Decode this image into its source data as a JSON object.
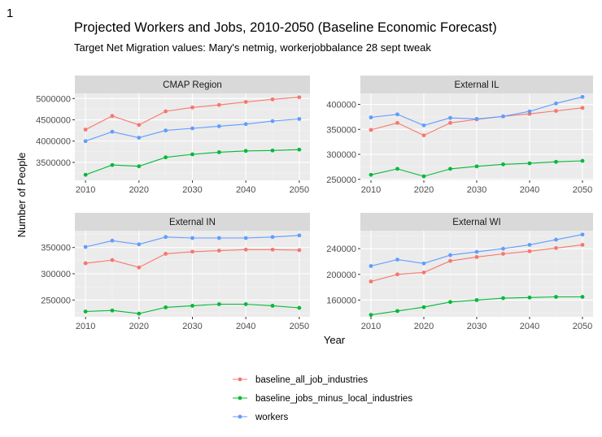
{
  "page_number": "1",
  "title": "Projected Workers and Jobs, 2010-2050 (Baseline Economic Forecast)",
  "subtitle": "Target Net Migration values:  Mary's netmig, workerjobbalance 28 sept tweak",
  "colors": {
    "baseline_all_job_industries": "#F8766D",
    "baseline_jobs_minus_local_industries": "#00BA38",
    "workers": "#619CFF",
    "panel_bg": "#EBEBEB",
    "strip_bg": "#D9D9D9",
    "grid_major": "#FFFFFF",
    "grid_minor": "#F4F4F4"
  },
  "chart_data": {
    "type": "line",
    "facets": true,
    "x": [
      2010,
      2015,
      2020,
      2025,
      2030,
      2035,
      2040,
      2045,
      2050
    ],
    "xlabel": "Year",
    "ylabel": "Number of People",
    "xticks": [
      2010,
      2020,
      2030,
      2040,
      2050
    ],
    "legend_position": "bottom",
    "legend": [
      "baseline_all_job_industries",
      "baseline_jobs_minus_local_industries",
      "workers"
    ],
    "panels": [
      {
        "title": "CMAP Region",
        "ylim": [
          3080000,
          5120000
        ],
        "yticks": [
          3500000,
          4000000,
          4500000,
          5000000
        ],
        "yticklabels": [
          "3500000",
          "4000000",
          "4500000",
          "5000000"
        ],
        "series": [
          {
            "name": "baseline_all_job_industries",
            "values": [
              4270000,
              4590000,
              4380000,
              4700000,
              4790000,
              4850000,
              4920000,
              4980000,
              5030000
            ]
          },
          {
            "name": "baseline_jobs_minus_local_industries",
            "values": [
              3210000,
              3440000,
              3410000,
              3620000,
              3690000,
              3740000,
              3770000,
              3780000,
              3800000
            ]
          },
          {
            "name": "workers",
            "values": [
              4000000,
              4220000,
              4080000,
              4250000,
              4300000,
              4350000,
              4400000,
              4470000,
              4520000
            ]
          }
        ]
      },
      {
        "title": "External IL",
        "ylim": [
          248000,
          422000
        ],
        "yticks": [
          250000,
          300000,
          350000,
          400000
        ],
        "yticklabels": [
          "250000",
          "300000",
          "350000",
          "400000"
        ],
        "series": [
          {
            "name": "baseline_all_job_industries",
            "values": [
              349000,
              363000,
              338000,
              363000,
              370000,
              376000,
              381000,
              387000,
              393000
            ]
          },
          {
            "name": "baseline_jobs_minus_local_industries",
            "values": [
              259000,
              271000,
              256000,
              271000,
              276000,
              280000,
              282000,
              285000,
              287000
            ]
          },
          {
            "name": "workers",
            "values": [
              374000,
              380000,
              358000,
              373000,
              371000,
              376000,
              386000,
              402000,
              415000
            ]
          }
        ]
      },
      {
        "title": "External IN",
        "ylim": [
          218000,
          382000
        ],
        "yticks": [
          250000,
          300000,
          350000
        ],
        "yticklabels": [
          "250000",
          "300000",
          "350000"
        ],
        "series": [
          {
            "name": "baseline_all_job_industries",
            "values": [
              320000,
              326000,
              312000,
              338000,
              342000,
              344000,
              346000,
              346000,
              345000
            ]
          },
          {
            "name": "baseline_jobs_minus_local_industries",
            "values": [
              228000,
              230000,
              224000,
              236000,
              239000,
              242000,
              242000,
              239000,
              235000
            ]
          },
          {
            "name": "workers",
            "values": [
              351000,
              363000,
              356000,
              370000,
              368000,
              368000,
              368000,
              370000,
              373000
            ]
          }
        ]
      },
      {
        "title": "External WI",
        "ylim": [
          134000,
          268000
        ],
        "yticks": [
          160000,
          200000,
          240000
        ],
        "yticklabels": [
          "160000",
          "200000",
          "240000"
        ],
        "series": [
          {
            "name": "baseline_all_job_industries",
            "values": [
              189000,
              200000,
              203000,
              221000,
              227000,
              232000,
              236000,
              241000,
              246000
            ]
          },
          {
            "name": "baseline_jobs_minus_local_industries",
            "values": [
              137000,
              143000,
              149000,
              157000,
              160000,
              163000,
              164000,
              165000,
              165000
            ]
          },
          {
            "name": "workers",
            "values": [
              213000,
              223000,
              217000,
              230000,
              235000,
              240000,
              246000,
              254000,
              262000
            ]
          }
        ]
      }
    ]
  }
}
